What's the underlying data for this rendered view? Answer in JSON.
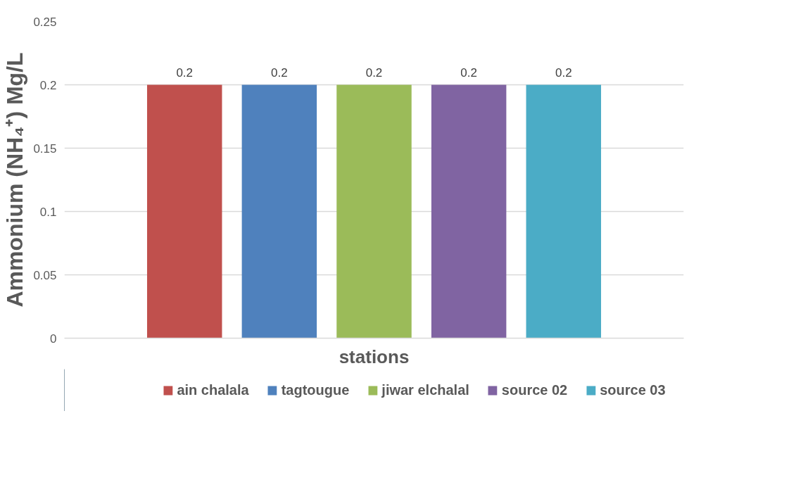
{
  "chart_data": {
    "type": "bar",
    "xlabel": "stations",
    "ylabel": "Ammonium (NH₄⁺) Mg/L",
    "categories": [
      null
    ],
    "series": [
      {
        "name": "ain chalala",
        "color": "#c0504d",
        "values": [
          0.2
        ]
      },
      {
        "name": "tagtougue",
        "color": "#4f81bd",
        "values": [
          0.2
        ]
      },
      {
        "name": "jiwar elchalal",
        "color": "#9bbb59",
        "values": [
          0.2
        ]
      },
      {
        "name": "source 02",
        "color": "#8064a2",
        "values": [
          0.2
        ]
      },
      {
        "name": "source 03",
        "color": "#4bacc6",
        "values": [
          0.2
        ]
      }
    ],
    "ylim": [
      0,
      0.25
    ],
    "yticks": [
      0,
      0.05,
      0.1,
      0.15,
      0.2,
      0.25
    ],
    "grid": "y",
    "data_labels": true,
    "legend": "bottom"
  }
}
